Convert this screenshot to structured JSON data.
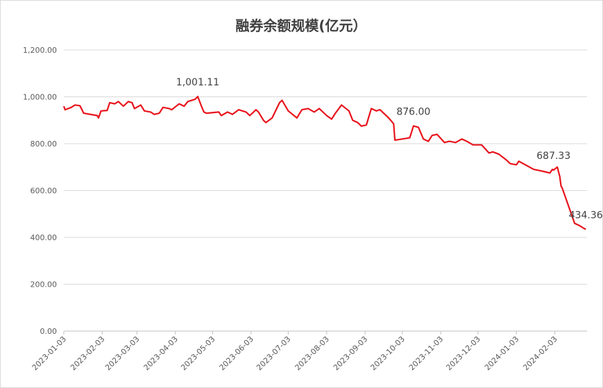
{
  "chart_data": {
    "type": "line",
    "title": "融券余额规模(亿元）",
    "x": [
      "2023-01-03",
      "2023-01-04",
      "2023-01-09",
      "2023-01-12",
      "2023-01-16",
      "2023-01-19",
      "2023-01-30",
      "2023-01-31",
      "2023-02-02",
      "2023-02-07",
      "2023-02-09",
      "2023-02-13",
      "2023-02-16",
      "2023-02-20",
      "2023-02-24",
      "2023-02-27",
      "2023-03-01",
      "2023-03-06",
      "2023-03-09",
      "2023-03-14",
      "2023-03-17",
      "2023-03-21",
      "2023-03-24",
      "2023-03-29",
      "2023-03-31",
      "2023-04-06",
      "2023-04-10",
      "2023-04-13",
      "2023-04-19",
      "2023-04-21",
      "2023-04-24",
      "2023-04-26",
      "2023-04-28",
      "2023-05-08",
      "2023-05-10",
      "2023-05-15",
      "2023-05-19",
      "2023-05-24",
      "2023-05-30",
      "2023-06-02",
      "2023-06-07",
      "2023-06-09",
      "2023-06-13",
      "2023-06-15",
      "2023-06-20",
      "2023-06-26",
      "2023-06-28",
      "2023-07-03",
      "2023-07-10",
      "2023-07-14",
      "2023-07-19",
      "2023-07-24",
      "2023-07-28",
      "2023-08-03",
      "2023-08-07",
      "2023-08-10",
      "2023-08-15",
      "2023-08-21",
      "2023-08-24",
      "2023-08-28",
      "2023-08-31",
      "2023-09-04",
      "2023-09-08",
      "2023-09-12",
      "2023-09-15",
      "2023-09-19",
      "2023-09-22",
      "2023-09-26",
      "2023-09-27",
      "2023-10-09",
      "2023-10-12",
      "2023-10-16",
      "2023-10-20",
      "2023-10-24",
      "2023-10-27",
      "2023-10-31",
      "2023-11-06",
      "2023-11-10",
      "2023-11-15",
      "2023-11-20",
      "2023-11-24",
      "2023-11-29",
      "2023-12-06",
      "2023-12-12",
      "2023-12-15",
      "2023-12-20",
      "2023-12-26",
      "2023-12-29",
      "2024-01-03",
      "2024-01-05",
      "2024-01-12",
      "2024-01-17",
      "2024-01-22",
      "2024-01-26",
      "2024-01-30",
      "2024-02-01",
      "2024-02-02",
      "2024-02-05",
      "2024-02-07",
      "2024-02-08",
      "2024-02-09",
      "2024-02-19",
      "2024-02-23",
      "2024-02-26",
      "2024-02-28"
    ],
    "series": [
      {
        "name": "融券余额",
        "color": "#e8141c",
        "values": [
          960,
          945,
          955,
          965,
          962,
          930,
          920,
          910,
          940,
          942,
          975,
          970,
          980,
          960,
          980,
          975,
          950,
          965,
          940,
          935,
          925,
          930,
          955,
          950,
          945,
          970,
          960,
          980,
          990,
          1001.11,
          960,
          935,
          930,
          935,
          920,
          935,
          925,
          945,
          935,
          920,
          945,
          935,
          900,
          890,
          910,
          975,
          985,
          940,
          910,
          945,
          950,
          935,
          950,
          920,
          905,
          930,
          965,
          940,
          900,
          890,
          875,
          880,
          950,
          940,
          945,
          925,
          910,
          885,
          815,
          825,
          876,
          870,
          820,
          810,
          835,
          840,
          805,
          810,
          805,
          820,
          810,
          795,
          795,
          760,
          765,
          755,
          730,
          715,
          710,
          725,
          705,
          690,
          685,
          680,
          675,
          690,
          687.33,
          700,
          660,
          620,
          610,
          460,
          450,
          440,
          434.36
        ],
        "value_labels": [
          null,
          null,
          null,
          null,
          null,
          null,
          null,
          null,
          null,
          null,
          null,
          null,
          null,
          null,
          null,
          null,
          null,
          null,
          null,
          null,
          null,
          null,
          null,
          null,
          null,
          null,
          null,
          null,
          null,
          "1,001.11",
          null,
          null,
          null,
          null,
          null,
          null,
          null,
          null,
          null,
          null,
          null,
          null,
          null,
          null,
          null,
          null,
          null,
          null,
          null,
          null,
          null,
          null,
          null,
          null,
          null,
          null,
          null,
          null,
          null,
          null,
          null,
          null,
          null,
          null,
          null,
          null,
          null,
          null,
          null,
          null,
          "876.00",
          null,
          null,
          null,
          null,
          null,
          null,
          null,
          null,
          null,
          null,
          null,
          null,
          null,
          null,
          null,
          null,
          null,
          null,
          null,
          null,
          null,
          null,
          null,
          null,
          null,
          "687.33",
          null,
          null,
          null,
          null,
          null,
          null,
          null,
          "434.36"
        ]
      }
    ],
    "xlim": [
      "2023-01-03",
      "2024-02-29"
    ],
    "xticks": [
      "2023-01-03",
      "2023-02-03",
      "2023-03-03",
      "2023-04-03",
      "2023-05-03",
      "2023-06-03",
      "2023-07-03",
      "2023-08-03",
      "2023-09-03",
      "2023-10-03",
      "2023-11-03",
      "2023-12-03",
      "2024-01-03",
      "2024-02-03"
    ],
    "ylim": [
      0,
      1200
    ],
    "yticks": [
      {
        "value": 0,
        "label": "0.00"
      },
      {
        "value": 200,
        "label": "200.00"
      },
      {
        "value": 400,
        "label": "400.00"
      },
      {
        "value": 600,
        "label": "600.00"
      },
      {
        "value": 800,
        "label": "800.00"
      },
      {
        "value": 1000,
        "label": "1,000.00"
      },
      {
        "value": 1200,
        "label": "1,200.00"
      }
    ],
    "grid": true
  }
}
